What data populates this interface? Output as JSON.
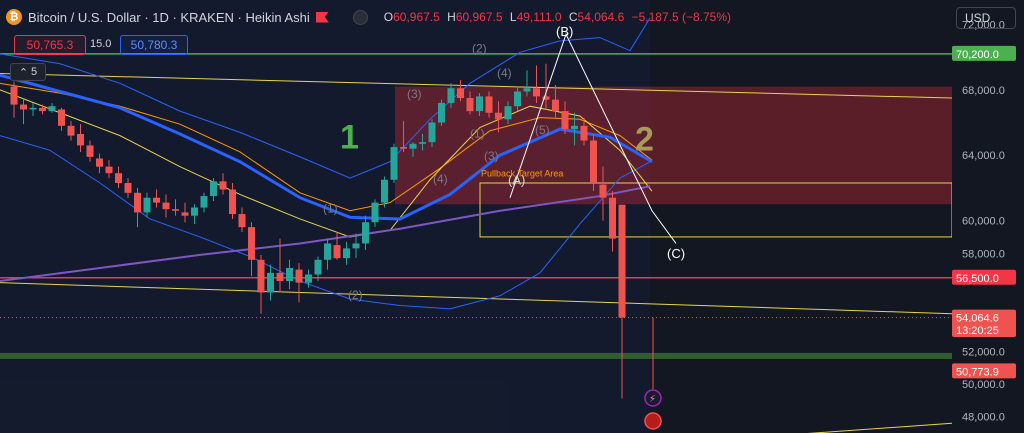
{
  "header": {
    "coin_icon": "₿",
    "symbol": "Bitcoin / U.S. Dollar · 1D · KRAKEN · Heikin Ashi",
    "ohlc": {
      "o_label": "O",
      "o": "60,967.5",
      "h_label": "H",
      "h": "60,967.5",
      "l_label": "L",
      "l": "49,111.0",
      "c_label": "C",
      "c": "54,064.6",
      "change": "−5,187.5 (−8.75%)"
    },
    "sell_price": "50,765.3",
    "spread": "15.0",
    "buy_price": "50,780.3",
    "indicators_count": "5",
    "indicators_chevron": "⌃"
  },
  "currency": "USD",
  "colors": {
    "bg": "#131722",
    "up": "#26a69a",
    "down": "#ef5350",
    "green_line": "#4caf50",
    "red_line": "#f23645",
    "yellow": "#e8d44d",
    "blue": "#2962ff",
    "purple": "#7e57c2",
    "orange": "#ff9800"
  },
  "chart_data": {
    "type": "candlestick",
    "y_axis": {
      "min": 47000,
      "max": 73500,
      "ticks": [
        "72,000.0",
        "68,000.0",
        "64,000.0",
        "60,000.0",
        "58,000.0",
        "52,000.0",
        "50,000.0",
        "48,000.0"
      ],
      "tick_values": [
        72000,
        68000,
        64000,
        60000,
        58000,
        52000,
        50000,
        48000
      ]
    },
    "candles": [
      [
        68200,
        68500,
        66300,
        67100
      ],
      [
        67100,
        67500,
        65900,
        66800
      ],
      [
        66800,
        67200,
        66400,
        66900
      ],
      [
        66900,
        67100,
        66500,
        66700
      ],
      [
        66700,
        67200,
        66600,
        67000
      ],
      [
        66800,
        66900,
        65500,
        65800
      ],
      [
        65800,
        66100,
        64900,
        65200
      ],
      [
        65300,
        65900,
        64200,
        64600
      ],
      [
        64600,
        64900,
        63600,
        63900
      ],
      [
        63800,
        64100,
        62900,
        63300
      ],
      [
        63300,
        63700,
        62600,
        62900
      ],
      [
        62900,
        63300,
        62000,
        62300
      ],
      [
        62300,
        62600,
        61400,
        61700
      ],
      [
        61700,
        62000,
        59600,
        60500
      ],
      [
        60500,
        61700,
        60200,
        61400
      ],
      [
        61400,
        61900,
        60800,
        61100
      ],
      [
        61100,
        61600,
        60200,
        60700
      ],
      [
        60700,
        61300,
        60300,
        60600
      ],
      [
        60500,
        61100,
        59900,
        60300
      ],
      [
        60300,
        61000,
        59800,
        60800
      ],
      [
        60800,
        61700,
        60500,
        61500
      ],
      [
        61500,
        62600,
        61200,
        62400
      ],
      [
        62400,
        62900,
        61600,
        61900
      ],
      [
        61900,
        62300,
        60100,
        60400
      ],
      [
        60400,
        60800,
        59300,
        59600
      ],
      [
        59600,
        59900,
        56600,
        57600
      ],
      [
        57600,
        57900,
        54300,
        55600
      ],
      [
        55600,
        57300,
        55100,
        56800
      ],
      [
        56800,
        58900,
        55600,
        56300
      ],
      [
        56300,
        57600,
        55800,
        57100
      ],
      [
        57000,
        57400,
        55000,
        56200
      ],
      [
        56200,
        57000,
        55900,
        56700
      ],
      [
        56700,
        57800,
        56300,
        57600
      ],
      [
        57600,
        58900,
        57000,
        58600
      ],
      [
        58500,
        59300,
        57600,
        57700
      ],
      [
        57700,
        58700,
        57300,
        58300
      ],
      [
        58300,
        59200,
        57700,
        58600
      ],
      [
        58600,
        60300,
        58200,
        59900
      ],
      [
        59900,
        61300,
        59600,
        61100
      ],
      [
        61100,
        62700,
        60800,
        62500
      ],
      [
        62500,
        64700,
        62300,
        64500
      ],
      [
        64500,
        66100,
        64200,
        64400
      ],
      [
        64400,
        64800,
        63900,
        64700
      ],
      [
        64700,
        65300,
        64300,
        64800
      ],
      [
        64800,
        66200,
        64500,
        66000
      ],
      [
        66000,
        67400,
        65800,
        67200
      ],
      [
        67200,
        68400,
        66900,
        68100
      ],
      [
        68100,
        68600,
        67300,
        67500
      ],
      [
        67500,
        67900,
        66500,
        66700
      ],
      [
        66700,
        67800,
        66400,
        67600
      ],
      [
        67600,
        67900,
        66300,
        66600
      ],
      [
        66600,
        67300,
        65400,
        66200
      ],
      [
        66200,
        67300,
        65900,
        67000
      ],
      [
        67000,
        68200,
        66700,
        67900
      ],
      [
        67900,
        69200,
        67600,
        68100
      ],
      [
        68100,
        69500,
        67200,
        67600
      ],
      [
        67600,
        69600,
        66800,
        67400
      ],
      [
        67400,
        68300,
        66300,
        66700
      ],
      [
        66700,
        67300,
        65300,
        65600
      ],
      [
        65600,
        66600,
        64600,
        65800
      ],
      [
        65800,
        66300,
        64600,
        64900
      ],
      [
        64900,
        65300,
        61800,
        62300
      ],
      [
        62200,
        63300,
        60000,
        61400
      ],
      [
        61400,
        61800,
        58100,
        58900
      ],
      [
        60967.5,
        60967.5,
        49111,
        54064.6
      ]
    ],
    "current_price": 54064.6,
    "price_tags": [
      {
        "label": "70,200.0",
        "value": 70200,
        "color": "#4caf50"
      },
      {
        "label": "56,500.0",
        "value": 56500,
        "color": "#f23645"
      },
      {
        "label": "54,064.6",
        "value": 54064.6,
        "color": "#ef5350"
      },
      {
        "label": "13:20:25",
        "value": 53300,
        "color": "#ef5350"
      },
      {
        "label": "50,773.9",
        "value": 50773.9,
        "color": "#ef5350"
      }
    ],
    "annotations": {
      "wave_1": "1",
      "wave_2": "2",
      "a": "(A)",
      "b": "(B)",
      "c": "(C)",
      "pullback": "Pullback Target Area",
      "sub_1": "(1)",
      "sub_2": "(2)",
      "sub_3": "(3)",
      "sub_4": "(4)",
      "sub_5": "(5)"
    },
    "legend": "none",
    "grid": "off"
  }
}
